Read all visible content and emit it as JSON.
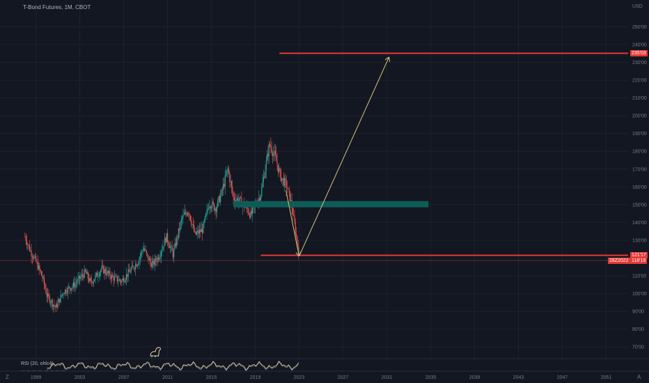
{
  "header": {
    "title": "T-Bond Futures, 1M, CBOT",
    "currency": "USD"
  },
  "price_axis": {
    "labels": [
      "250'00",
      "240'00",
      "230'00",
      "220'00",
      "210'00",
      "200'00",
      "190'00",
      "180'00",
      "170'00",
      "160'00",
      "150'00",
      "140'00",
      "130'00",
      "110'00",
      "100'00",
      "90'00",
      "80'00",
      "70'00"
    ],
    "values": [
      250,
      240,
      230,
      220,
      210,
      200,
      190,
      180,
      170,
      160,
      150,
      140,
      130,
      110,
      100,
      90,
      80,
      70
    ]
  },
  "time_axis": {
    "labels": [
      "1999",
      "2003",
      "2007",
      "2011",
      "2015",
      "2019",
      "2023",
      "2027",
      "2031",
      "2035",
      "2039",
      "2043",
      "2047",
      "2051"
    ],
    "years": [
      1999,
      2003,
      2007,
      2011,
      2015,
      2019,
      2023,
      2027,
      2031,
      2035,
      2039,
      2043,
      2047,
      2051
    ]
  },
  "price_tags": {
    "target": {
      "label": "235'03",
      "value": 235.1
    },
    "support": {
      "label": "121'17",
      "value": 121.5
    },
    "crosshair_date": "28Z2022",
    "current": {
      "label": "118'19",
      "value": 118.6
    }
  },
  "indicator": {
    "label": "RSI (20, ohlc4)",
    "sub": "— — — — — — — —"
  },
  "controls": {
    "zoom_label": "Z",
    "auto_label": "A"
  },
  "colors": {
    "up": "#26a69a",
    "down": "#ef5350",
    "line": "#e53935",
    "zone": "#0e5c57",
    "arrow": "#d8c77a",
    "bg": "#131722"
  },
  "chart_data": {
    "type": "candlestick",
    "instrument": "T-Bond Futures",
    "interval": "1M",
    "x_range_years": [
      1997.5,
      2053
    ],
    "y_range": [
      65,
      258
    ],
    "price_path": [
      [
        1998.0,
        132
      ],
      [
        1998.5,
        124
      ],
      [
        1999.0,
        118
      ],
      [
        1999.6,
        109
      ],
      [
        2000.0,
        99
      ],
      [
        2000.8,
        92
      ],
      [
        2001.5,
        101
      ],
      [
        2002.5,
        105
      ],
      [
        2003.5,
        112
      ],
      [
        2004.0,
        106
      ],
      [
        2005.0,
        114
      ],
      [
        2006.0,
        109
      ],
      [
        2006.8,
        107
      ],
      [
        2007.5,
        112
      ],
      [
        2008.3,
        118
      ],
      [
        2008.8,
        126
      ],
      [
        2009.2,
        120
      ],
      [
        2009.6,
        116
      ],
      [
        2010.2,
        121
      ],
      [
        2010.9,
        132
      ],
      [
        2011.5,
        122
      ],
      [
        2012.3,
        142
      ],
      [
        2012.9,
        147
      ],
      [
        2013.5,
        133
      ],
      [
        2014.2,
        136
      ],
      [
        2014.8,
        151
      ],
      [
        2015.4,
        148
      ],
      [
        2015.9,
        156
      ],
      [
        2016.5,
        170
      ],
      [
        2017.0,
        154
      ],
      [
        2017.6,
        152
      ],
      [
        2018.2,
        148
      ],
      [
        2018.6,
        144
      ],
      [
        2019.5,
        156
      ],
      [
        2020.3,
        184
      ],
      [
        2020.8,
        177
      ],
      [
        2021.3,
        166
      ],
      [
        2021.9,
        160
      ],
      [
        2022.3,
        150
      ],
      [
        2022.8,
        130
      ],
      [
        2023.0,
        121
      ]
    ],
    "levels": [
      {
        "kind": "target_resistance",
        "value": 235.1
      },
      {
        "kind": "support",
        "value": 121.5
      },
      {
        "kind": "current_price",
        "value": 118.6
      }
    ],
    "zone": {
      "from_year": 2017.0,
      "to_year": 2034.8,
      "low": 148.5,
      "high": 152.0
    },
    "projection": [
      [
        2023.0,
        121
      ],
      [
        2031.2,
        233
      ]
    ],
    "recent_move": [
      [
        2021.8,
        158
      ],
      [
        2023.0,
        121
      ]
    ]
  }
}
